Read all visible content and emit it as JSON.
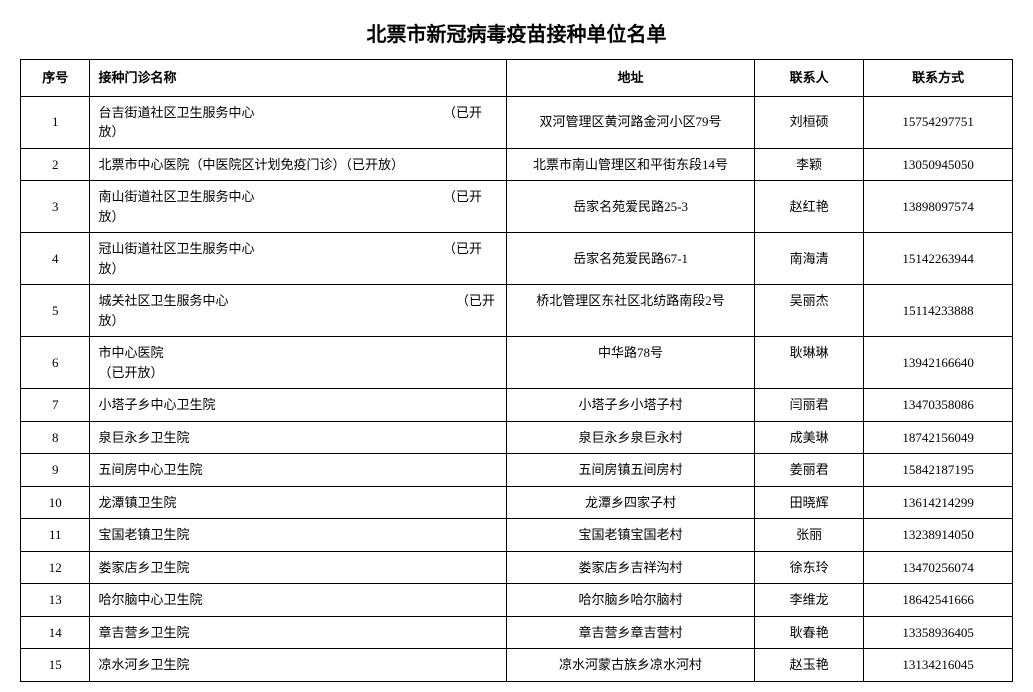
{
  "title": "北票市新冠病毒疫苗接种单位名单",
  "columns": [
    "序号",
    "接种门诊名称",
    "地址",
    "联系人",
    "联系方式"
  ],
  "rows": [
    {
      "idx": "1",
      "name": "台吉街道社区卫生服务中心　　　　　　　　　　　　　　　（已开放）",
      "addr": "双河管理区黄河路金河小区79号",
      "contact": "刘桓硕",
      "phone": "15754297751",
      "tall": true,
      "valignTop": false
    },
    {
      "idx": "2",
      "name": "北票市中心医院（中医院区计划免疫门诊）（已开放）",
      "addr": "北票市南山管理区和平街东段14号",
      "contact": "李颖",
      "phone": "13050945050",
      "tall": false,
      "valignTop": false
    },
    {
      "idx": "3",
      "name": "南山街道社区卫生服务中心　　　　　　　　　　　　　　　（已开放）",
      "addr": "岳家名苑爱民路25-3",
      "contact": "赵红艳",
      "phone": "13898097574",
      "tall": true,
      "valignTop": false
    },
    {
      "idx": "4",
      "name": "冠山街道社区卫生服务中心　　　　　　　　　　　　　　　（已开放）",
      "addr": "岳家名苑爱民路67-1",
      "contact": "南海清",
      "phone": "15142263944",
      "tall": true,
      "valignTop": false
    },
    {
      "idx": "5",
      "name": "城关社区卫生服务中心　　　　　　　　　　　　　　　　　　（已开放）",
      "addr": "桥北管理区东社区北纺路南段2号",
      "contact": "吴丽杰",
      "phone": "15114233888",
      "tall": true,
      "valignTop": true
    },
    {
      "idx": "6",
      "name": "市中心医院　　　　　　　　　　　　　　　　　　　　　　　　　　　　　　　　　　　　（已开放）",
      "addr": "中华路78号",
      "contact": "耿琳琳",
      "phone": "13942166640",
      "tall": true,
      "valignTop": true
    },
    {
      "idx": "7",
      "name": "小塔子乡中心卫生院",
      "addr": "小塔子乡小塔子村",
      "contact": "闫丽君",
      "phone": "13470358086",
      "tall": false,
      "valignTop": false
    },
    {
      "idx": "8",
      "name": "泉巨永乡卫生院",
      "addr": "泉巨永乡泉巨永村",
      "contact": "成美琳",
      "phone": "18742156049",
      "tall": false,
      "valignTop": false
    },
    {
      "idx": "9",
      "name": "五间房中心卫生院",
      "addr": "五间房镇五间房村",
      "contact": "姜丽君",
      "phone": "15842187195",
      "tall": false,
      "valignTop": false
    },
    {
      "idx": "10",
      "name": "龙潭镇卫生院",
      "addr": "龙潭乡四家子村",
      "contact": "田晓辉",
      "phone": "13614214299",
      "tall": false,
      "valignTop": false
    },
    {
      "idx": "11",
      "name": "宝国老镇卫生院",
      "addr": "宝国老镇宝国老村",
      "contact": "张丽",
      "phone": "13238914050",
      "tall": false,
      "valignTop": false
    },
    {
      "idx": "12",
      "name": "娄家店乡卫生院",
      "addr": "娄家店乡吉祥沟村",
      "contact": "徐东玲",
      "phone": "13470256074",
      "tall": false,
      "valignTop": false
    },
    {
      "idx": "13",
      "name": "哈尔脑中心卫生院",
      "addr": "哈尔脑乡哈尔脑村",
      "contact": "李维龙",
      "phone": "18642541666",
      "tall": false,
      "valignTop": false
    },
    {
      "idx": "14",
      "name": "章吉营乡卫生院",
      "addr": "章吉营乡章吉营村",
      "contact": "耿春艳",
      "phone": "13358936405",
      "tall": false,
      "valignTop": false
    },
    {
      "idx": "15",
      "name": "凉水河乡卫生院",
      "addr": "凉水河蒙古族乡凉水河村",
      "contact": "赵玉艳",
      "phone": "13134216045",
      "tall": false,
      "valignTop": false
    }
  ]
}
